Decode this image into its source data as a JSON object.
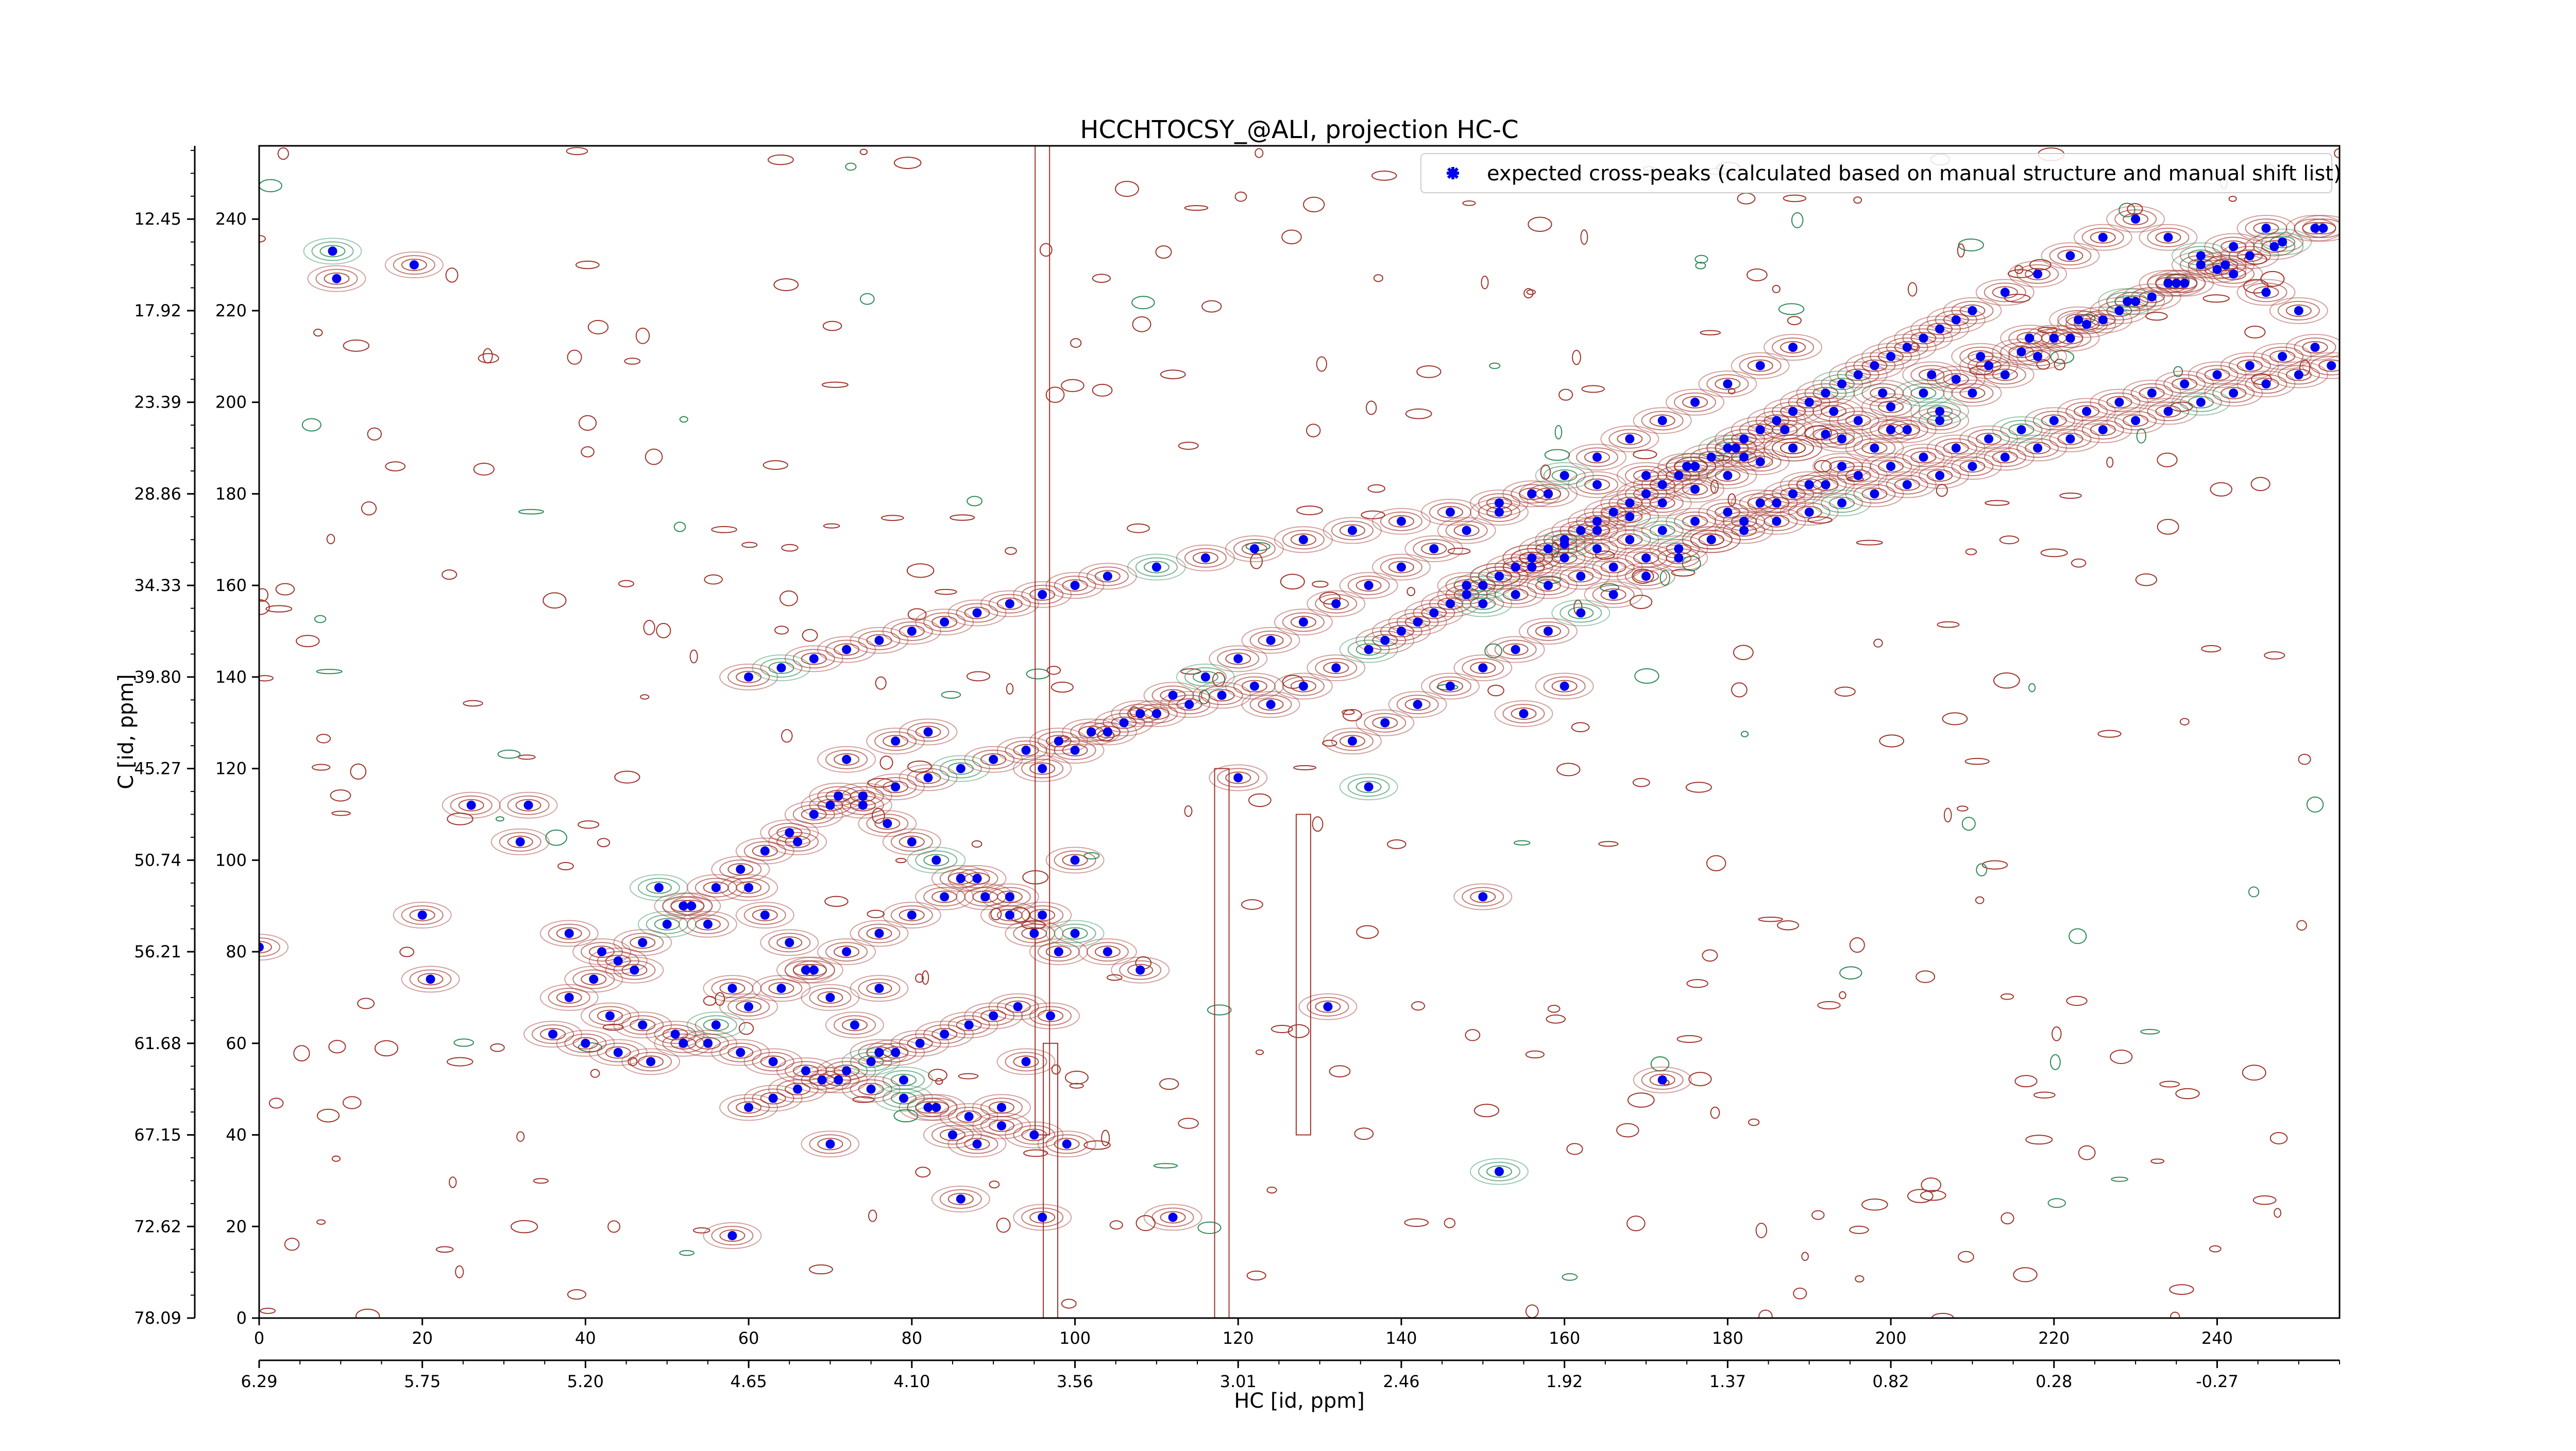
{
  "chart_data": {
    "type": "scatter",
    "title": "HCCHTOCSY_@ALI, projection HC-C",
    "xlabel": "HC [id, ppm]",
    "ylabel": "C [id, ppm]",
    "xlim": [
      0,
      255
    ],
    "ylim": [
      0,
      256
    ],
    "x_ticks": [
      0,
      20,
      40,
      60,
      80,
      100,
      120,
      140,
      160,
      180,
      200,
      220,
      240
    ],
    "y_ticks": [
      0,
      20,
      40,
      60,
      80,
      100,
      120,
      140,
      160,
      180,
      200,
      220,
      240
    ],
    "x_ppm_ticks": [
      "6.29",
      "5.75",
      "5.20",
      "4.65",
      "4.10",
      "3.56",
      "3.01",
      "2.46",
      "1.92",
      "1.37",
      "0.82",
      "0.28",
      "-0.27"
    ],
    "y_ppm_ticks": [
      "78.09",
      "72.62",
      "67.15",
      "61.68",
      "56.21",
      "50.74",
      "45.27",
      "39.80",
      "34.33",
      "28.86",
      "23.39",
      "17.92",
      "12.45"
    ],
    "legend": {
      "label": "expected cross-peaks (calculated based on manual structure and manual shift list)",
      "position": "top-right"
    },
    "colors": {
      "peaks": "#0000ee",
      "positive_contours": "#a0342b",
      "negative_contours": "#2e8b57"
    },
    "series": [
      {
        "x": [
          9,
          9.5,
          19,
          0,
          20,
          21,
          33,
          32,
          38,
          42,
          46,
          49,
          52,
          55,
          58,
          60,
          62,
          65,
          67,
          70,
          73,
          76,
          79,
          82,
          85,
          88,
          91,
          94,
          97,
          38,
          41,
          44,
          47,
          50,
          53,
          56,
          59,
          62,
          65,
          68,
          71,
          74,
          77,
          80,
          83,
          86,
          89,
          92,
          95,
          98,
          36,
          40,
          44,
          48,
          52,
          56,
          60,
          64,
          68,
          72,
          76,
          80,
          84,
          88,
          92,
          96,
          100,
          104,
          43,
          47,
          51,
          55,
          59,
          63,
          67,
          71,
          75,
          79,
          83,
          87,
          91,
          95,
          99,
          60,
          63,
          66,
          69,
          72,
          75,
          78,
          81,
          84,
          87,
          90,
          93,
          70,
          74,
          78,
          82,
          86,
          90,
          94,
          98,
          102,
          106,
          110,
          114,
          118,
          122,
          60,
          64,
          68,
          72,
          76,
          80,
          84,
          88,
          92,
          96,
          100,
          104,
          110,
          116,
          122,
          128,
          134,
          140,
          146,
          152,
          158,
          164,
          170,
          176,
          182,
          188,
          194,
          200,
          206,
          96,
          100,
          104,
          108,
          112,
          116,
          120,
          124,
          128,
          132,
          136,
          140,
          144,
          148,
          152,
          156,
          160,
          164,
          168,
          172,
          176,
          180,
          184,
          188,
          124,
          128,
          132,
          136,
          140,
          144,
          148,
          152,
          156,
          160,
          164,
          168,
          172,
          176,
          180,
          184,
          188,
          192,
          196,
          200,
          204,
          208,
          138,
          142,
          146,
          150,
          154,
          158,
          162,
          166,
          170,
          174,
          178,
          182,
          186,
          190,
          194,
          198,
          202,
          206,
          210,
          214,
          218,
          222,
          226,
          230,
          234,
          238,
          242,
          246,
          250,
          134,
          138,
          142,
          146,
          150,
          154,
          158,
          162,
          166,
          170,
          174,
          178,
          182,
          186,
          190,
          194,
          198,
          202,
          206,
          210,
          214,
          218,
          222,
          226,
          230,
          234,
          238,
          242,
          246,
          150,
          154,
          158,
          162,
          166,
          170,
          174,
          178,
          182,
          186,
          190,
          194,
          198,
          202,
          206,
          210,
          214,
          218,
          222,
          226,
          230,
          234,
          238,
          242,
          246,
          250,
          254,
          148,
          152,
          156,
          160,
          164,
          168,
          172,
          176,
          180,
          184,
          188,
          192,
          196,
          200,
          204,
          208,
          212,
          216,
          220,
          224,
          228,
          232,
          236,
          240,
          244,
          248,
          252,
          156,
          160,
          164,
          168,
          172,
          176,
          180,
          184,
          188,
          192,
          196,
          200,
          204,
          208,
          212,
          216,
          220,
          224,
          228,
          232,
          236,
          240,
          244,
          248,
          252,
          175,
          181,
          187,
          193,
          199,
          205,
          211,
          217,
          223,
          229,
          235,
          241,
          247,
          253,
          72,
          120,
          160,
          150,
          172,
          78,
          152,
          112,
          70,
          108,
          131,
          96,
          76,
          86,
          66,
          58,
          82,
          136,
          155,
          26,
          100
        ],
        "y": [
          233,
          227,
          230,
          81,
          88,
          74,
          112,
          104,
          84,
          80,
          76,
          94,
          90,
          86,
          72,
          94,
          88,
          82,
          76,
          70,
          64,
          58,
          52,
          46,
          40,
          38,
          46,
          56,
          66,
          70,
          74,
          78,
          82,
          86,
          90,
          94,
          98,
          102,
          106,
          110,
          114,
          112,
          108,
          104,
          100,
          96,
          92,
          88,
          84,
          80,
          62,
          60,
          58,
          56,
          60,
          64,
          68,
          72,
          76,
          80,
          84,
          88,
          92,
          96,
          92,
          88,
          84,
          80,
          66,
          64,
          62,
          60,
          58,
          56,
          54,
          52,
          50,
          48,
          46,
          44,
          42,
          40,
          38,
          46,
          48,
          50,
          52,
          54,
          56,
          58,
          60,
          62,
          64,
          66,
          68,
          112,
          114,
          116,
          118,
          120,
          122,
          124,
          126,
          128,
          130,
          132,
          134,
          136,
          138,
          140,
          142,
          144,
          146,
          148,
          150,
          152,
          154,
          156,
          158,
          160,
          162,
          164,
          166,
          168,
          170,
          172,
          174,
          176,
          178,
          180,
          182,
          184,
          186,
          188,
          190,
          192,
          194,
          196,
          120,
          124,
          128,
          132,
          136,
          140,
          144,
          148,
          152,
          156,
          160,
          164,
          168,
          172,
          176,
          180,
          184,
          188,
          192,
          196,
          200,
          204,
          208,
          212,
          134,
          138,
          142,
          146,
          150,
          154,
          158,
          162,
          166,
          170,
          174,
          178,
          182,
          186,
          190,
          194,
          198,
          202,
          206,
          210,
          214,
          218,
          148,
          152,
          156,
          160,
          164,
          168,
          172,
          176,
          180,
          184,
          188,
          192,
          196,
          200,
          204,
          208,
          212,
          216,
          220,
          224,
          228,
          232,
          236,
          240,
          236,
          232,
          228,
          224,
          220,
          126,
          130,
          134,
          138,
          142,
          146,
          150,
          154,
          158,
          162,
          166,
          170,
          174,
          178,
          182,
          186,
          190,
          194,
          198,
          202,
          206,
          210,
          214,
          218,
          222,
          226,
          230,
          234,
          238,
          156,
          158,
          160,
          162,
          164,
          166,
          168,
          170,
          172,
          174,
          176,
          178,
          180,
          182,
          184,
          186,
          188,
          190,
          192,
          194,
          196,
          198,
          200,
          202,
          204,
          206,
          208,
          160,
          162,
          164,
          166,
          168,
          170,
          172,
          174,
          176,
          178,
          180,
          182,
          184,
          186,
          188,
          190,
          192,
          194,
          196,
          198,
          200,
          202,
          204,
          206,
          208,
          210,
          212,
          166,
          169,
          172,
          175,
          178,
          181,
          184,
          187,
          190,
          193,
          196,
          199,
          202,
          205,
          208,
          211,
          214,
          217,
          220,
          223,
          226,
          229,
          232,
          235,
          238,
          186,
          190,
          194,
          198,
          202,
          206,
          210,
          214,
          218,
          222,
          226,
          230,
          234,
          238,
          122,
          118,
          138,
          92,
          52,
          126,
          32,
          22,
          38,
          76,
          68,
          22,
          72,
          26,
          104,
          18,
          128,
          116,
          132,
          112,
          100
        ]
      }
    ]
  }
}
